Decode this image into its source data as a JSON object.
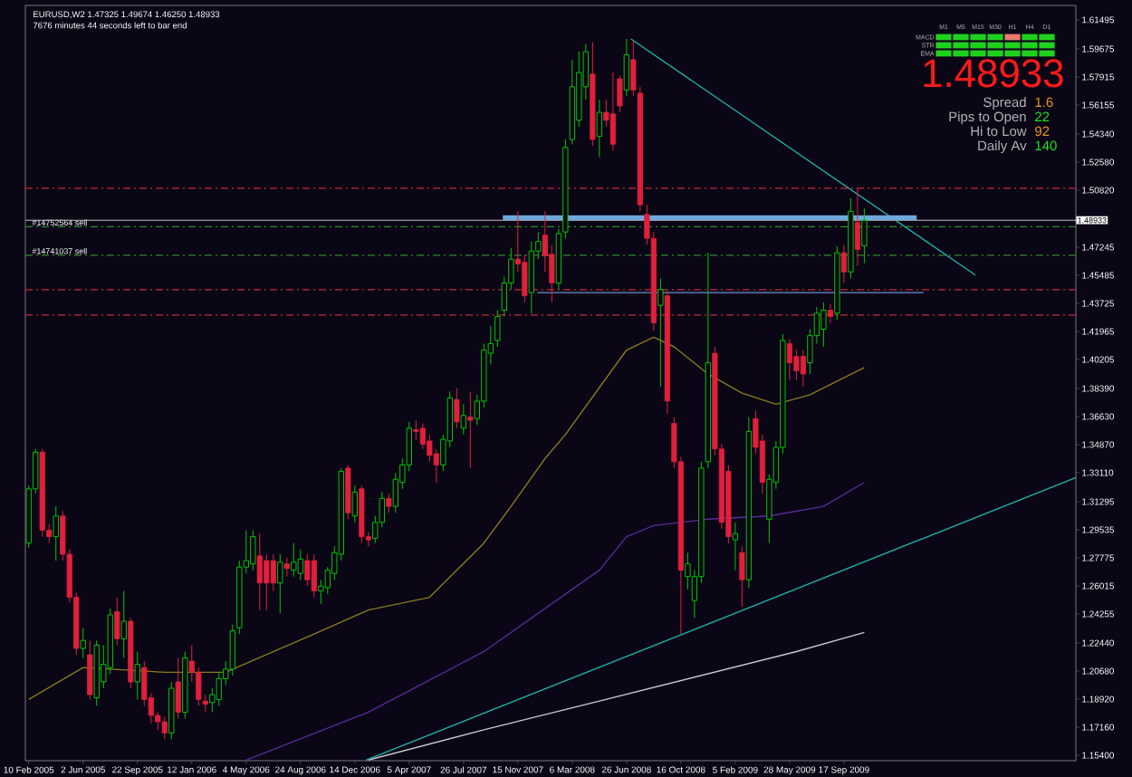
{
  "chart_data": {
    "type": "candlestick",
    "title": "EURUSD,W2  1.47325 1.49674 1.46250 1.48933",
    "subtitle": "7676 minutes 44 seconds left to bar end",
    "x": [
      "2005-02-10",
      "2005-02-24",
      "2005-03-10",
      "2005-03-24",
      "2005-04-07",
      "2005-04-21",
      "2005-05-05",
      "2005-05-19",
      "2005-06-02",
      "2005-06-16",
      "2005-06-30",
      "2005-07-14",
      "2005-07-28",
      "2005-08-11",
      "2005-08-25",
      "2005-09-08",
      "2005-09-22",
      "2005-10-06",
      "2005-10-20",
      "2005-11-03",
      "2005-11-17",
      "2005-12-01",
      "2005-12-15",
      "2005-12-29",
      "2006-01-12",
      "2006-01-26",
      "2006-02-09",
      "2006-02-23",
      "2006-03-09",
      "2006-03-23",
      "2006-04-06",
      "2006-04-20",
      "2006-05-04",
      "2006-05-18",
      "2006-06-01",
      "2006-06-15",
      "2006-06-29",
      "2006-07-13",
      "2006-07-27",
      "2006-08-10",
      "2006-08-24",
      "2006-09-07",
      "2006-09-21",
      "2006-10-05",
      "2006-10-19",
      "2006-11-02",
      "2006-11-16",
      "2006-11-30",
      "2006-12-14",
      "2006-12-28",
      "2007-01-11",
      "2007-01-25",
      "2007-02-08",
      "2007-02-22",
      "2007-03-08",
      "2007-03-22",
      "2007-04-05",
      "2007-04-19",
      "2007-05-03",
      "2007-05-17",
      "2007-05-31",
      "2007-06-14",
      "2007-06-28",
      "2007-07-12",
      "2007-07-26",
      "2007-08-09",
      "2007-08-23",
      "2007-09-06",
      "2007-09-20",
      "2007-10-04",
      "2007-10-18",
      "2007-11-01",
      "2007-11-15",
      "2007-11-29",
      "2007-12-13",
      "2007-12-27",
      "2008-01-10",
      "2008-01-24",
      "2008-02-07",
      "2008-02-21",
      "2008-03-06",
      "2008-03-20",
      "2008-04-03",
      "2008-04-17",
      "2008-05-01",
      "2008-05-15",
      "2008-05-29",
      "2008-06-12",
      "2008-06-26",
      "2008-07-10",
      "2008-07-24",
      "2008-08-07",
      "2008-08-21",
      "2008-09-04",
      "2008-09-18",
      "2008-10-02",
      "2008-10-16",
      "2008-10-30",
      "2008-11-13",
      "2008-11-27",
      "2008-12-11",
      "2008-12-25",
      "2009-01-08",
      "2009-01-22",
      "2009-02-05",
      "2009-02-19",
      "2009-03-05",
      "2009-03-19",
      "2009-04-02",
      "2009-04-16",
      "2009-04-30",
      "2009-05-14",
      "2009-05-28",
      "2009-06-11",
      "2009-06-25",
      "2009-07-09",
      "2009-07-23",
      "2009-08-06",
      "2009-08-20",
      "2009-09-03",
      "2009-09-17",
      "2009-10-01",
      "2009-10-15",
      "2009-10-29"
    ],
    "ohlc": [
      [
        1.287,
        1.323,
        1.284,
        1.321
      ],
      [
        1.321,
        1.346,
        1.318,
        1.344
      ],
      [
        1.344,
        1.346,
        1.291,
        1.295
      ],
      [
        1.295,
        1.299,
        1.287,
        1.291
      ],
      [
        1.291,
        1.31,
        1.276,
        1.304
      ],
      [
        1.304,
        1.307,
        1.276,
        1.28
      ],
      [
        1.28,
        1.283,
        1.25,
        1.253
      ],
      [
        1.253,
        1.256,
        1.217,
        1.221
      ],
      [
        1.221,
        1.234,
        1.215,
        1.226
      ],
      [
        1.217,
        1.226,
        1.189,
        1.192
      ],
      [
        1.19,
        1.226,
        1.185,
        1.223
      ],
      [
        1.2,
        1.223,
        1.196,
        1.211
      ],
      [
        1.209,
        1.246,
        1.205,
        1.242
      ],
      [
        1.244,
        1.253,
        1.223,
        1.227
      ],
      [
        1.227,
        1.257,
        1.215,
        1.238
      ],
      [
        1.238,
        1.24,
        1.196,
        1.2
      ],
      [
        1.2,
        1.219,
        1.189,
        1.211
      ],
      [
        1.209,
        1.213,
        1.185,
        1.189
      ],
      [
        1.19,
        1.193,
        1.174,
        1.179
      ],
      [
        1.179,
        1.181,
        1.17,
        1.175
      ],
      [
        1.175,
        1.178,
        1.164,
        1.168
      ],
      [
        1.168,
        1.2,
        1.164,
        1.196
      ],
      [
        1.2,
        1.215,
        1.177,
        1.181
      ],
      [
        1.181,
        1.219,
        1.177,
        1.215
      ],
      [
        1.213,
        1.223,
        1.2,
        1.206
      ],
      [
        1.206,
        1.209,
        1.185,
        1.189
      ],
      [
        1.188,
        1.192,
        1.181,
        1.186
      ],
      [
        1.187,
        1.196,
        1.181,
        1.192
      ],
      [
        1.189,
        1.206,
        1.185,
        1.202
      ],
      [
        1.202,
        1.213,
        1.198,
        1.208
      ],
      [
        1.208,
        1.236,
        1.204,
        1.232
      ],
      [
        1.234,
        1.276,
        1.23,
        1.272
      ],
      [
        1.272,
        1.295,
        1.268,
        1.276
      ],
      [
        1.274,
        1.295,
        1.27,
        1.291
      ],
      [
        1.279,
        1.293,
        1.245,
        1.262
      ],
      [
        1.276,
        1.28,
        1.245,
        1.262
      ],
      [
        1.276,
        1.28,
        1.257,
        1.262
      ],
      [
        1.262,
        1.28,
        1.243,
        1.275
      ],
      [
        1.274,
        1.278,
        1.266,
        1.271
      ],
      [
        1.27,
        1.287,
        1.266,
        1.275
      ],
      [
        1.268,
        1.283,
        1.264,
        1.277
      ],
      [
        1.276,
        1.28,
        1.26,
        1.264
      ],
      [
        1.276,
        1.28,
        1.253,
        1.257
      ],
      [
        1.257,
        1.264,
        1.249,
        1.26
      ],
      [
        1.259,
        1.272,
        1.255,
        1.27
      ],
      [
        1.268,
        1.285,
        1.264,
        1.281
      ],
      [
        1.28,
        1.334,
        1.276,
        1.332
      ],
      [
        1.334,
        1.336,
        1.302,
        1.306
      ],
      [
        1.304,
        1.323,
        1.3,
        1.319
      ],
      [
        1.321,
        1.323,
        1.287,
        1.291
      ],
      [
        1.291,
        1.294,
        1.285,
        1.289
      ],
      [
        1.29,
        1.304,
        1.287,
        1.3
      ],
      [
        1.3,
        1.319,
        1.297,
        1.315
      ],
      [
        1.315,
        1.318,
        1.306,
        1.31
      ],
      [
        1.31,
        1.331,
        1.306,
        1.327
      ],
      [
        1.325,
        1.34,
        1.321,
        1.336
      ],
      [
        1.336,
        1.363,
        1.332,
        1.359
      ],
      [
        1.358,
        1.364,
        1.352,
        1.357
      ],
      [
        1.359,
        1.362,
        1.346,
        1.349
      ],
      [
        1.351,
        1.355,
        1.338,
        1.342
      ],
      [
        1.343,
        1.346,
        1.325,
        1.336
      ],
      [
        1.336,
        1.355,
        1.332,
        1.352
      ],
      [
        1.351,
        1.382,
        1.347,
        1.378
      ],
      [
        1.377,
        1.384,
        1.359,
        1.363
      ],
      [
        1.359,
        1.374,
        1.355,
        1.367
      ],
      [
        1.366,
        1.382,
        1.334,
        1.364
      ],
      [
        1.365,
        1.38,
        1.361,
        1.376
      ],
      [
        1.376,
        1.412,
        1.372,
        1.408
      ],
      [
        1.406,
        1.423,
        1.399,
        1.412
      ],
      [
        1.414,
        1.433,
        1.41,
        1.429
      ],
      [
        1.433,
        1.454,
        1.429,
        1.45
      ],
      [
        1.45,
        1.472,
        1.446,
        1.465
      ],
      [
        1.465,
        1.495,
        1.457,
        1.462
      ],
      [
        1.463,
        1.468,
        1.438,
        1.442
      ],
      [
        1.444,
        1.476,
        1.431,
        1.47
      ],
      [
        1.47,
        1.482,
        1.465,
        1.476
      ],
      [
        1.48,
        1.495,
        1.457,
        1.467
      ],
      [
        1.468,
        1.474,
        1.438,
        1.45
      ],
      [
        1.45,
        1.484,
        1.446,
        1.481
      ],
      [
        1.482,
        1.54,
        1.478,
        1.535
      ],
      [
        1.54,
        1.59,
        1.537,
        1.573
      ],
      [
        1.552,
        1.595,
        1.548,
        1.582
      ],
      [
        1.573,
        1.6,
        1.565,
        1.595
      ],
      [
        1.581,
        1.601,
        1.536,
        1.54
      ],
      [
        1.542,
        1.565,
        1.529,
        1.557
      ],
      [
        1.557,
        1.565,
        1.548,
        1.552
      ],
      [
        1.556,
        1.582,
        1.533,
        1.537
      ],
      [
        1.578,
        1.58,
        1.557,
        1.561
      ],
      [
        1.571,
        1.603,
        1.567,
        1.593
      ],
      [
        1.59,
        1.602,
        1.567,
        1.571
      ],
      [
        1.569,
        1.573,
        1.495,
        1.499
      ],
      [
        1.493,
        1.499,
        1.474,
        1.478
      ],
      [
        1.478,
        1.482,
        1.42,
        1.425
      ],
      [
        1.436,
        1.453,
        1.385,
        1.446
      ],
      [
        1.442,
        1.445,
        1.368,
        1.376
      ],
      [
        1.362,
        1.366,
        1.334,
        1.338
      ],
      [
        1.338,
        1.341,
        1.23,
        1.27
      ],
      [
        1.266,
        1.281,
        1.258,
        1.274
      ],
      [
        1.251,
        1.27,
        1.24,
        1.266
      ],
      [
        1.266,
        1.338,
        1.262,
        1.334
      ],
      [
        1.338,
        1.469,
        1.334,
        1.4
      ],
      [
        1.406,
        1.41,
        1.342,
        1.346
      ],
      [
        1.346,
        1.349,
        1.296,
        1.3
      ],
      [
        1.332,
        1.336,
        1.287,
        1.291
      ],
      [
        1.289,
        1.3,
        1.27,
        1.293
      ],
      [
        1.281,
        1.285,
        1.247,
        1.264
      ],
      [
        1.264,
        1.366,
        1.259,
        1.357
      ],
      [
        1.365,
        1.37,
        1.343,
        1.347
      ],
      [
        1.351,
        1.355,
        1.318,
        1.325
      ],
      [
        1.302,
        1.33,
        1.287,
        1.327
      ],
      [
        1.325,
        1.351,
        1.321,
        1.347
      ],
      [
        1.347,
        1.418,
        1.343,
        1.414
      ],
      [
        1.412,
        1.415,
        1.389,
        1.4
      ],
      [
        1.404,
        1.408,
        1.389,
        1.395
      ],
      [
        1.404,
        1.408,
        1.385,
        1.393
      ],
      [
        1.4,
        1.421,
        1.393,
        1.417
      ],
      [
        1.417,
        1.435,
        1.412,
        1.431
      ],
      [
        1.421,
        1.438,
        1.41,
        1.433
      ],
      [
        1.433,
        1.437,
        1.425,
        1.429
      ],
      [
        1.431,
        1.473,
        1.427,
        1.469
      ],
      [
        1.469,
        1.474,
        1.45,
        1.457
      ],
      [
        1.457,
        1.503,
        1.453,
        1.495
      ],
      [
        1.488,
        1.51,
        1.461,
        1.471
      ],
      [
        1.47325,
        1.49674,
        1.4625,
        1.48933
      ]
    ],
    "series": [
      {
        "type": "line",
        "color": "#8b7a1e",
        "x": [
          "2005-02-10",
          "2005-06-02",
          "2005-11-17",
          "2006-03-23",
          "2006-09-21",
          "2007-01-11",
          "2007-05-17",
          "2007-09-06",
          "2007-11-01",
          "2008-01-10",
          "2008-02-21",
          "2008-06-26",
          "2008-08-21",
          "2008-10-02",
          "2008-12-11",
          "2009-02-19",
          "2009-04-30",
          "2009-07-09",
          "2009-10-29"
        ],
        "values": [
          1.189,
          1.209,
          1.206,
          1.206,
          1.23,
          1.245,
          1.253,
          1.287,
          1.31,
          1.34,
          1.355,
          1.408,
          1.416,
          1.41,
          1.393,
          1.381,
          1.374,
          1.38,
          1.397
        ]
      },
      {
        "type": "line",
        "color": "#5a2a9a",
        "x": [
          "2006-05-04",
          "2007-01-11",
          "2007-09-06",
          "2008-05-01",
          "2008-06-26",
          "2008-08-21",
          "2008-12-11",
          "2009-04-16",
          "2009-08-06",
          "2009-10-29"
        ],
        "values": [
          1.151,
          1.181,
          1.219,
          1.27,
          1.291,
          1.298,
          1.302,
          1.304,
          1.31,
          1.325
        ]
      },
      {
        "type": "line",
        "color": "#c8c8c8",
        "x": [
          "2007-01-11",
          "2007-09-06",
          "2008-05-01",
          "2009-06-11",
          "2009-10-29"
        ],
        "values": [
          1.151,
          1.17,
          1.188,
          1.219,
          1.231
        ]
      },
      {
        "type": "line",
        "color": "#20b2aa",
        "x": [
          "2008-07-05",
          "2010-06-15"
        ],
        "values": [
          1.603,
          1.455
        ]
      },
      {
        "type": "line",
        "color": "#20b2aa",
        "x": [
          "2007-01-06",
          "2011-01-08"
        ],
        "values": [
          1.151,
          1.328
        ]
      },
      {
        "type": "line",
        "color": "#6fa8dc",
        "x": [
          "2007-10-15",
          "2010-02-14"
        ],
        "values": [
          1.491,
          1.491
        ]
      },
      {
        "type": "line",
        "color": "#6f8fcf",
        "x": [
          "2007-12-25",
          "2010-02-28"
        ],
        "values": [
          1.444,
          1.444
        ]
      }
    ],
    "xlim": [
      "2005-02-03",
      "2011-01-08"
    ],
    "ylim": [
      1.1506,
      1.624
    ],
    "xticks": [
      {
        "value": "2005-02-10",
        "label": "10 Feb 2005"
      },
      {
        "value": "2005-06-02",
        "label": "2 Jun 2005"
      },
      {
        "value": "2005-09-22",
        "label": "22 Sep 2005"
      },
      {
        "value": "2006-01-12",
        "label": "12 Jan 2006"
      },
      {
        "value": "2006-05-04",
        "label": "4 May 2006"
      },
      {
        "value": "2006-08-24",
        "label": "24 Aug 2006"
      },
      {
        "value": "2006-12-14",
        "label": "14 Dec 2006"
      },
      {
        "value": "2007-04-05",
        "label": "5 Apr 2007"
      },
      {
        "value": "2007-07-26",
        "label": "26 Jul 2007"
      },
      {
        "value": "2007-11-15",
        "label": "15 Nov 2007"
      },
      {
        "value": "2008-03-06",
        "label": "6 Mar 2008"
      },
      {
        "value": "2008-06-26",
        "label": "26 Jun 2008"
      },
      {
        "value": "2008-10-16",
        "label": "16 Oct 2008"
      },
      {
        "value": "2009-02-05",
        "label": "5 Feb 2009"
      },
      {
        "value": "2009-05-28",
        "label": "28 May 2009"
      },
      {
        "value": "2009-09-17",
        "label": "17 Sep 2009"
      }
    ],
    "yticks": [
      {
        "value": 1.61495,
        "label": "1.61495"
      },
      {
        "value": 1.59675,
        "label": "1.59675"
      },
      {
        "value": 1.57915,
        "label": "1.57915"
      },
      {
        "value": 1.56155,
        "label": "1.56155"
      },
      {
        "value": 1.5434,
        "label": "1.54340"
      },
      {
        "value": 1.5258,
        "label": "1.52580"
      },
      {
        "value": 1.5082,
        "label": "1.50820"
      },
      {
        "value": 1.47245,
        "label": "1.47245"
      },
      {
        "value": 1.45485,
        "label": "1.45485"
      },
      {
        "value": 1.43725,
        "label": "1.43725"
      },
      {
        "value": 1.41965,
        "label": "1.41965"
      },
      {
        "value": 1.40205,
        "label": "1.40205"
      },
      {
        "value": 1.3839,
        "label": "1.38390"
      },
      {
        "value": 1.3663,
        "label": "1.36630"
      },
      {
        "value": 1.3487,
        "label": "1.34870"
      },
      {
        "value": 1.3311,
        "label": "1.33110"
      },
      {
        "value": 1.31295,
        "label": "1.31295"
      },
      {
        "value": 1.29535,
        "label": "1.29535"
      },
      {
        "value": 1.27775,
        "label": "1.27775"
      },
      {
        "value": 1.26015,
        "label": "1.26015"
      },
      {
        "value": 1.24255,
        "label": "1.24255"
      },
      {
        "value": 1.2244,
        "label": "1.22440"
      },
      {
        "value": 1.2068,
        "label": "1.20680"
      },
      {
        "value": 1.1892,
        "label": "1.18920"
      },
      {
        "value": 1.1716,
        "label": "1.17160"
      },
      {
        "value": 1.154,
        "label": "1.15400"
      }
    ],
    "ref_lines": [
      {
        "axis": "y",
        "value": 1.5094,
        "color": "#c8283c",
        "line_style": "dashed"
      },
      {
        "axis": "y",
        "value": 1.4458,
        "color": "#c8283c",
        "line_style": "dashed"
      },
      {
        "axis": "y",
        "value": 1.4299,
        "color": "#c8283c",
        "line_style": "dashed"
      },
      {
        "axis": "y",
        "value": 1.48527,
        "color": "#2e8b2e",
        "line_style": "dashed",
        "label": "#14752564 sell"
      },
      {
        "axis": "y",
        "value": 1.4674,
        "color": "#2e8b2e",
        "line_style": "dashed",
        "label": "#14741037 sell"
      },
      {
        "axis": "y",
        "value": 1.48933,
        "color": "#c0c0c0",
        "line_style": "solid",
        "label": "1.48933"
      }
    ],
    "annotations": [
      "1.48933",
      "Spread",
      "1.6",
      "Pips to Open",
      "22",
      "Hi to Low",
      "92",
      "Daily Av",
      "140",
      "M1",
      "M5",
      "M15",
      "M30",
      "H1",
      "H4",
      "D1",
      "MACD",
      "STR",
      "EMA"
    ]
  }
}
